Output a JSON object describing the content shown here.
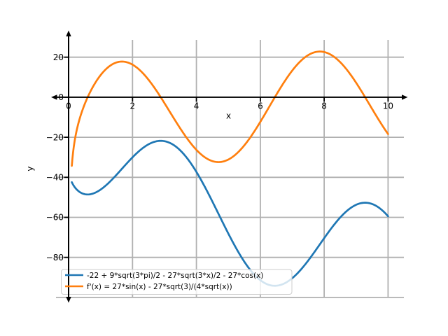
{
  "figure": {
    "background": "#ffffff"
  },
  "chart_data": {
    "type": "line",
    "title": "",
    "xlabel": "x",
    "ylabel": "y",
    "xlim": [
      -0.395,
      10.495
    ],
    "ylim": [
      -100.05,
      28.65
    ],
    "x_ticks": [
      0,
      2,
      4,
      6,
      8,
      10
    ],
    "y_ticks": [
      20,
      0,
      -20,
      -40,
      -60,
      -80
    ],
    "x_gridlines": [
      0,
      2,
      4,
      6,
      8,
      10
    ],
    "y_gridlines": [
      20,
      0,
      -20,
      -40,
      -60,
      -80,
      -100
    ],
    "grid": true,
    "grid_color": "#b0b0b0",
    "axis_color": "#000000",
    "line_width": 2.7,
    "legend": {
      "position": "lower-left",
      "border_color": "#cccccc",
      "background_alpha": 0.8
    },
    "series": [
      {
        "name": "-22 + 9*sqrt(3*pi)/2 - 27*sqrt(3*x)/2 - 27*cos(x)",
        "color": "#1f77b4",
        "domain": [
          0.1,
          10
        ],
        "fn": {
          "const": -8.1849,
          "sqrt": -23.3827,
          "cos": -27,
          "sin": 0,
          "invsqrt": 0
        },
        "sample_x": [
          0.1,
          0.5,
          1,
          1.5,
          2,
          2.5,
          3,
          3.5,
          4,
          4.5,
          5,
          5.5,
          6,
          6.5,
          7,
          7.5,
          8,
          8.5,
          9,
          9.5,
          10
        ],
        "sample_y": [
          -42.4,
          -48.4,
          -46.2,
          -38.7,
          -30.0,
          -23.5,
          -22.0,
          -26.7,
          -37.3,
          -52.1,
          -68.1,
          -82.2,
          -91.4,
          -94.2,
          -90.4,
          -81.6,
          -70.4,
          -60.1,
          -53.7,
          -53.3,
          -59.5
        ]
      },
      {
        "name": "f'(x) = 27*sin(x) - 27*sqrt(3)/(4*sqrt(x))",
        "color": "#ff7f0e",
        "domain": [
          0.1,
          10
        ],
        "fn": {
          "const": 0,
          "sqrt": 0,
          "cos": 0,
          "sin": 27,
          "invsqrt": -11.6913
        },
        "sample_x": [
          0.1,
          0.5,
          1,
          1.5,
          2,
          2.5,
          3,
          3.5,
          4,
          4.5,
          5,
          5.5,
          6,
          6.5,
          7,
          7.5,
          8,
          8.5,
          9,
          9.5,
          10
        ],
        "sample_y": [
          -34.3,
          -3.6,
          11.0,
          17.4,
          16.3,
          8.8,
          -2.9,
          -15.7,
          -26.3,
          -31.9,
          -31.1,
          -24.0,
          -12.3,
          1.2,
          13.3,
          21.1,
          22.6,
          17.6,
          7.2,
          -5.8,
          -18.4
        ]
      }
    ]
  }
}
